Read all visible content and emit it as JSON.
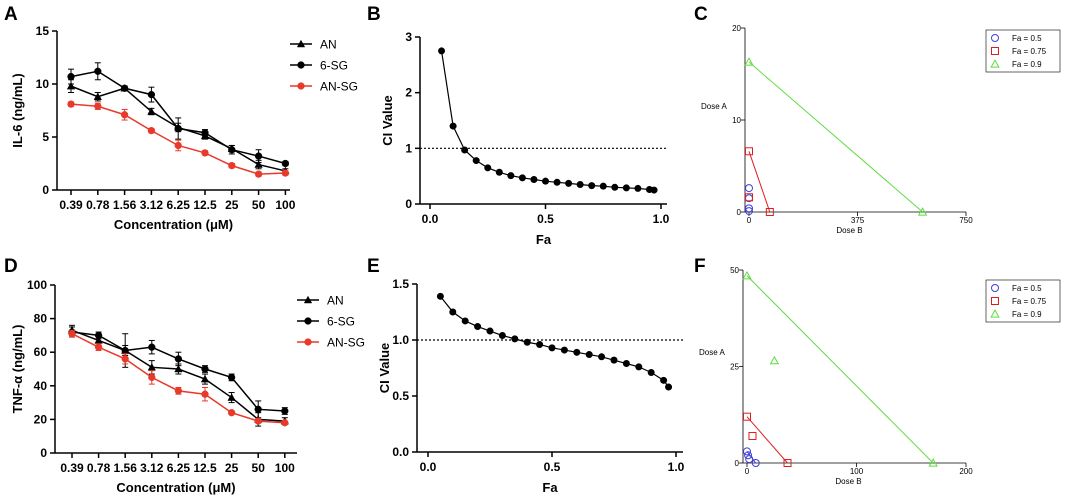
{
  "chart_data": [
    {
      "panel": "A",
      "type": "line",
      "ylabel": "IL-6 (ng/mL)",
      "xlabel": "Concentration (μM)",
      "categories": [
        "0.39",
        "0.78",
        "1.56",
        "3.12",
        "6.25",
        "12.5",
        "25",
        "50",
        "100"
      ],
      "ylim": [
        0,
        15
      ],
      "yticks": [
        "0",
        "5",
        "10",
        "15"
      ],
      "series": [
        {
          "name": "AN",
          "marker": "triangle",
          "color": "#000000",
          "values": [
            9.8,
            8.8,
            9.6,
            7.4,
            5.9,
            5.1,
            3.9,
            2.4,
            1.8
          ],
          "errors": [
            0.6,
            0.4,
            0.2,
            0.3,
            0.4,
            0.3,
            0.3,
            0.4,
            0.2
          ]
        },
        {
          "name": "6-SG",
          "marker": "circle",
          "color": "#000000",
          "values": [
            10.7,
            11.2,
            9.6,
            9.0,
            5.8,
            5.4,
            3.8,
            3.2,
            2.5
          ],
          "errors": [
            0.7,
            0.8,
            0.2,
            0.7,
            1.0,
            0.3,
            0.4,
            0.6,
            0.2
          ]
        },
        {
          "name": "AN-SG",
          "marker": "circle",
          "color": "#e8392a",
          "values": [
            8.1,
            7.9,
            7.1,
            5.6,
            4.2,
            3.5,
            2.3,
            1.5,
            1.6
          ],
          "errors": [
            0.2,
            0.3,
            0.5,
            0.2,
            0.5,
            0.2,
            0.2,
            0.2,
            0.2
          ]
        }
      ]
    },
    {
      "panel": "B",
      "type": "scatter",
      "xlabel": "Fa",
      "ylabel": "CI Value",
      "xlim": [
        0,
        1
      ],
      "ylim": [
        0,
        3
      ],
      "xticks": [
        "0.0",
        "0.5",
        "1.0"
      ],
      "yticks": [
        "0",
        "1",
        "2",
        "3"
      ],
      "reference_line": 1,
      "x": [
        0.05,
        0.1,
        0.15,
        0.2,
        0.25,
        0.3,
        0.35,
        0.4,
        0.45,
        0.5,
        0.55,
        0.6,
        0.65,
        0.7,
        0.75,
        0.8,
        0.85,
        0.9,
        0.95,
        0.97
      ],
      "y": [
        2.75,
        1.4,
        0.97,
        0.78,
        0.65,
        0.57,
        0.51,
        0.47,
        0.44,
        0.41,
        0.39,
        0.37,
        0.35,
        0.33,
        0.32,
        0.3,
        0.29,
        0.28,
        0.26,
        0.25
      ]
    },
    {
      "panel": "C",
      "type": "isobologram",
      "xlabel": "Dose B",
      "ylabel": "Dose A",
      "xlim": [
        0,
        750
      ],
      "ylim": [
        0,
        20
      ],
      "xticks": [
        "0",
        "375",
        "750"
      ],
      "yticks": [
        "0",
        "10",
        "20"
      ],
      "legend": [
        "Fa = 0.5",
        "Fa = 0.75",
        "Fa = 0.9"
      ],
      "lines": [
        {
          "name": "Fa = 0.75",
          "color": "#dd1f1f",
          "x": [
            0,
            72
          ],
          "y": [
            6.6,
            0
          ]
        },
        {
          "name": "Fa = 0.9",
          "color": "#5fdc3e",
          "x": [
            0,
            600
          ],
          "y": [
            16.3,
            0
          ]
        }
      ],
      "points": [
        {
          "name": "Fa = 0.5",
          "marker": "circle",
          "color": "#3f3fdb",
          "x": [
            0,
            0,
            0,
            0
          ],
          "y": [
            2.6,
            1.5,
            0.4,
            0.1
          ]
        },
        {
          "name": "Fa = 0.75",
          "marker": "square",
          "color": "#dd1f1f",
          "x": [
            0,
            0,
            72
          ],
          "y": [
            6.6,
            1.6,
            0
          ]
        },
        {
          "name": "Fa = 0.9",
          "marker": "triangle",
          "color": "#5fdc3e",
          "x": [
            0,
            600
          ],
          "y": [
            16.3,
            0
          ]
        }
      ]
    },
    {
      "panel": "D",
      "type": "line",
      "ylabel": "TNF-α (ng/mL)",
      "xlabel": "Concentration (μM)",
      "categories": [
        "0.39",
        "0.78",
        "1.56",
        "3.12",
        "6.25",
        "12.5",
        "25",
        "50",
        "100"
      ],
      "ylim": [
        0,
        100
      ],
      "yticks": [
        "0",
        "20",
        "40",
        "60",
        "80",
        "100"
      ],
      "series": [
        {
          "name": "AN",
          "marker": "triangle",
          "color": "#000000",
          "values": [
            73,
            67,
            61,
            51,
            50,
            44,
            33,
            20,
            19
          ],
          "errors": [
            3,
            3,
            10,
            4,
            3,
            3,
            3,
            4,
            2
          ]
        },
        {
          "name": "6-SG",
          "marker": "circle",
          "color": "#000000",
          "values": [
            72,
            70,
            61,
            63,
            56,
            50,
            45,
            26,
            25
          ],
          "errors": [
            3,
            2,
            3,
            4,
            4,
            2,
            2,
            5,
            2
          ]
        },
        {
          "name": "AN-SG",
          "marker": "circle",
          "color": "#e8392a",
          "values": [
            71,
            63,
            56,
            45,
            37,
            35,
            24,
            19,
            18
          ],
          "errors": [
            2,
            2,
            3,
            4,
            2,
            4,
            1,
            1,
            1
          ]
        }
      ]
    },
    {
      "panel": "E",
      "type": "scatter",
      "xlabel": "Fa",
      "ylabel": "CI Value",
      "xlim": [
        0,
        1
      ],
      "ylim": [
        0,
        1.5
      ],
      "xticks": [
        "0.0",
        "0.5",
        "1.0"
      ],
      "yticks": [
        "0.0",
        "0.5",
        "1.0",
        "1.5"
      ],
      "reference_line": 1,
      "x": [
        0.05,
        0.1,
        0.15,
        0.2,
        0.25,
        0.3,
        0.35,
        0.4,
        0.45,
        0.5,
        0.55,
        0.6,
        0.65,
        0.7,
        0.75,
        0.8,
        0.85,
        0.9,
        0.95,
        0.97
      ],
      "y": [
        1.39,
        1.25,
        1.17,
        1.12,
        1.08,
        1.04,
        1.01,
        0.98,
        0.96,
        0.93,
        0.91,
        0.89,
        0.87,
        0.85,
        0.82,
        0.79,
        0.76,
        0.71,
        0.64,
        0.58
      ]
    },
    {
      "panel": "F",
      "type": "isobologram",
      "xlabel": "Dose B",
      "ylabel": "Dose A",
      "xlim": [
        0,
        200
      ],
      "ylim": [
        0,
        50
      ],
      "xticks": [
        "0",
        "100",
        "200"
      ],
      "yticks": [
        "0",
        "25",
        "50"
      ],
      "legend": [
        "Fa = 0.5",
        "Fa = 0.75",
        "Fa = 0.9"
      ],
      "lines": [
        {
          "name": "Fa = 0.5",
          "color": "#3f3fdb",
          "x": [
            0,
            8
          ],
          "y": [
            3,
            0
          ]
        },
        {
          "name": "Fa = 0.75",
          "color": "#dd1f1f",
          "x": [
            0,
            37
          ],
          "y": [
            12,
            0
          ]
        },
        {
          "name": "Fa = 0.9",
          "color": "#5fdc3e",
          "x": [
            0,
            170
          ],
          "y": [
            48.5,
            0
          ]
        }
      ],
      "points": [
        {
          "name": "Fa = 0.5",
          "marker": "circle",
          "color": "#3f3fdb",
          "x": [
            0,
            1,
            2,
            8
          ],
          "y": [
            3,
            2,
            1,
            0
          ]
        },
        {
          "name": "Fa = 0.75",
          "marker": "square",
          "color": "#dd1f1f",
          "x": [
            0,
            5,
            37
          ],
          "y": [
            12,
            7,
            0
          ]
        },
        {
          "name": "Fa = 0.9",
          "marker": "triangle",
          "color": "#5fdc3e",
          "x": [
            0,
            25,
            170
          ],
          "y": [
            48.5,
            26.5,
            0
          ]
        }
      ]
    }
  ]
}
